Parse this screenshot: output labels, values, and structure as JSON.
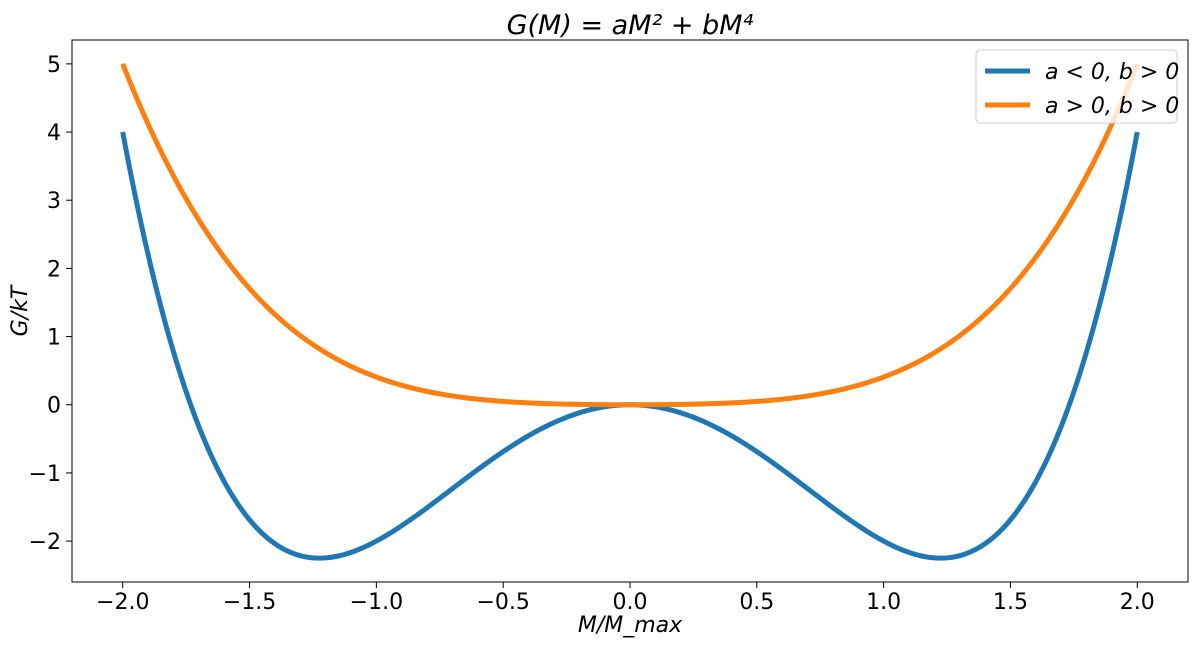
{
  "chart_data": {
    "type": "line",
    "title": "G(M) = aM² + bM⁴",
    "xlabel": "M/M_max",
    "ylabel": "G/kT",
    "xlim": [
      -2.2,
      2.2
    ],
    "ylim": [
      -2.6,
      5.35
    ],
    "xticks": [
      -2.0,
      -1.5,
      -1.0,
      -0.5,
      0.0,
      0.5,
      1.0,
      1.5,
      2.0
    ],
    "xtick_labels": [
      "−2.0",
      "−1.5",
      "−1.0",
      "−0.5",
      "0.0",
      "0.5",
      "1.0",
      "1.5",
      "2.0"
    ],
    "yticks": [
      -2,
      -1,
      0,
      1,
      2,
      3,
      4,
      5
    ],
    "ytick_labels": [
      "−2",
      "−1",
      "0",
      "1",
      "2",
      "3",
      "4",
      "5"
    ],
    "grid": false,
    "legend_position": "top-right",
    "series": [
      {
        "name": "a < 0, b > 0",
        "color": "#1f77b4",
        "function": "-3*M^2 + 1*M^4",
        "x": [
          -2.0,
          -1.75,
          -1.5,
          -1.25,
          -1.2247,
          -1.0,
          -0.75,
          -0.5,
          -0.25,
          0.0,
          0.25,
          0.5,
          0.75,
          1.0,
          1.2247,
          1.25,
          1.5,
          1.75,
          2.0
        ],
        "y": [
          4.0,
          0.19,
          -1.69,
          -2.25,
          -2.25,
          -2.0,
          -1.37,
          -0.69,
          -0.18,
          0.0,
          -0.18,
          -0.69,
          -1.37,
          -2.0,
          -2.25,
          -2.25,
          -1.69,
          0.19,
          4.0
        ]
      },
      {
        "name": "a > 0, b > 0",
        "color": "#ff7f0e",
        "function": "0.125*M^2 + 0.28125*M^4",
        "x": [
          -2.0,
          -1.75,
          -1.5,
          -1.25,
          -1.0,
          -0.75,
          -0.5,
          -0.25,
          0.0,
          0.25,
          0.5,
          0.75,
          1.0,
          1.25,
          1.5,
          1.75,
          2.0
        ],
        "y": [
          5.0,
          3.02,
          1.71,
          0.88,
          0.41,
          0.16,
          0.05,
          0.01,
          0.0,
          0.01,
          0.05,
          0.16,
          0.41,
          0.88,
          1.71,
          3.02,
          5.0
        ]
      }
    ]
  }
}
